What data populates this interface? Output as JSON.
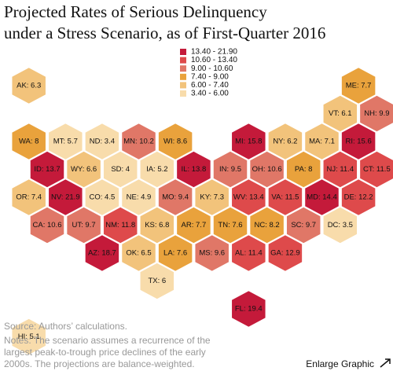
{
  "chart_data": {
    "type": "hexmap",
    "title": [
      "Projected Rates of Serious Delinquency",
      "under a Stress Scenario, as of First-Quarter 2016"
    ],
    "legend": [
      {
        "label": "13.40 - 21.90",
        "min": 13.4,
        "max": 21.9,
        "color": "#c41a3a"
      },
      {
        "label": "10.60 - 13.40",
        "min": 10.6,
        "max": 13.4,
        "color": "#de4a4b"
      },
      {
        "label": "9.00 - 10.60",
        "min": 9.0,
        "max": 10.6,
        "color": "#e07767"
      },
      {
        "label": "7.40 - 9.00",
        "min": 7.4,
        "max": 9.0,
        "color": "#e9a23c"
      },
      {
        "label": "6.00 - 7.40",
        "min": 6.0,
        "max": 7.4,
        "color": "#f2c37b"
      },
      {
        "label": "3.40 - 6.00",
        "min": 3.4,
        "max": 6.0,
        "color": "#f8dcab"
      }
    ],
    "tiles": [
      {
        "label": "AK: 6.3",
        "value": 6.3
      },
      {
        "label": "ME: 7.7",
        "value": 7.7
      },
      {
        "label": "VT: 6.1",
        "value": 6.1
      },
      {
        "label": "NH: 9.9",
        "value": 9.9
      },
      {
        "label": "WA: 8",
        "value": 8
      },
      {
        "label": "MT: 5.7",
        "value": 5.7
      },
      {
        "label": "ND: 3.4",
        "value": 3.4
      },
      {
        "label": "MN: 10.2",
        "value": 10.2
      },
      {
        "label": "WI: 8.6",
        "value": 8.6
      },
      {
        "label": "MI: 15.8",
        "value": 15.8
      },
      {
        "label": "NY: 6.2",
        "value": 6.2
      },
      {
        "label": "MA: 7.1",
        "value": 7.1
      },
      {
        "label": "RI: 15.6",
        "value": 15.6
      },
      {
        "label": "ID: 13.7",
        "value": 13.7
      },
      {
        "label": "WY: 6.6",
        "value": 6.6
      },
      {
        "label": "SD: 4",
        "value": 4
      },
      {
        "label": "IA: 5.2",
        "value": 5.2
      },
      {
        "label": "IL: 13.8",
        "value": 13.8
      },
      {
        "label": "IN: 9.5",
        "value": 9.5
      },
      {
        "label": "OH: 10.6",
        "value": 10.6
      },
      {
        "label": "PA: 8",
        "value": 8
      },
      {
        "label": "NJ: 11.4",
        "value": 11.4
      },
      {
        "label": "CT: 11.5",
        "value": 11.5
      },
      {
        "label": "OR: 7.4",
        "value": 7.4
      },
      {
        "label": "NV: 21.9",
        "value": 21.9
      },
      {
        "label": "CO: 4.5",
        "value": 4.5
      },
      {
        "label": "NE: 4.9",
        "value": 4.9
      },
      {
        "label": "MO: 9.4",
        "value": 9.4
      },
      {
        "label": "KY: 7.3",
        "value": 7.3
      },
      {
        "label": "WV: 13.4",
        "value": 13.4
      },
      {
        "label": "VA: 11.5",
        "value": 11.5
      },
      {
        "label": "MD: 14.4",
        "value": 14.4
      },
      {
        "label": "DE: 12.2",
        "value": 12.2
      },
      {
        "label": "CA: 10.6",
        "value": 10.6
      },
      {
        "label": "UT: 9.7",
        "value": 9.7
      },
      {
        "label": "NM: 11.8",
        "value": 11.8
      },
      {
        "label": "KS: 6.8",
        "value": 6.8
      },
      {
        "label": "AR: 7.7",
        "value": 7.7
      },
      {
        "label": "TN: 7.6",
        "value": 7.6
      },
      {
        "label": "NC: 8.2",
        "value": 8.2
      },
      {
        "label": "SC: 9.7",
        "value": 9.7
      },
      {
        "label": "DC: 3.5",
        "value": 3.5
      },
      {
        "label": "AZ: 18.7",
        "value": 18.7
      },
      {
        "label": "OK: 6.5",
        "value": 6.5
      },
      {
        "label": "LA: 7.6",
        "value": 7.6
      },
      {
        "label": "MS: 9.6",
        "value": 9.6
      },
      {
        "label": "AL: 11.4",
        "value": 11.4
      },
      {
        "label": "GA: 12.9",
        "value": 12.9
      },
      {
        "label": "TX: 6",
        "value": 6
      },
      {
        "label": "FL: 19.4",
        "value": 19.4
      },
      {
        "label": "HI: 5.1",
        "value": 5.1
      }
    ],
    "source": "Source: Authors’ calculations.",
    "notes": "Notes: The scenario assumes a recurrence of the largest peak-to-trough price declines of the early 2000s. The projections are balance-weighted.",
    "link": "Enlarge Graphic"
  }
}
